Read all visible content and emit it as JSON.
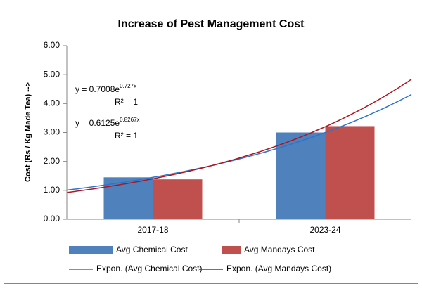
{
  "chart_data": {
    "type": "bar",
    "title": "Increase of Pest Management Cost",
    "y_label": "Cost (Rs / Kg Made Tea) -->",
    "categories": [
      "2017-18",
      "2023-24"
    ],
    "series": [
      {
        "name": "Avg Chemical Cost",
        "color": "#4f81bd",
        "values": [
          1.45,
          3.0
        ]
      },
      {
        "name": "Avg Mandays Cost",
        "color": "#c0504d",
        "values": [
          1.38,
          3.22
        ]
      }
    ],
    "trendlines": [
      {
        "name": "Expon. (Avg Chemical Cost)",
        "color": "#2e75c9",
        "type": "exponential",
        "coefficient": 0.7008,
        "exponent": 0.727,
        "equation_base": "y = 0.7008e",
        "equation_power": "0.727x",
        "r2_label": "R² = 1"
      },
      {
        "name": "Expon. (Avg Mandays Cost)",
        "color": "#b0151f",
        "type": "exponential",
        "coefficient": 0.6125,
        "exponent": 0.8267,
        "equation_base": "y = 0.6125e",
        "equation_power": "0.8267x",
        "r2_label": "R² = 1"
      }
    ],
    "ylim": [
      0,
      6
    ],
    "yticks": [
      {
        "value": 0,
        "label": "0.00"
      },
      {
        "value": 1,
        "label": "1.00"
      },
      {
        "value": 2,
        "label": "2.00"
      },
      {
        "value": 3,
        "label": "3.00"
      },
      {
        "value": 4,
        "label": "4.00"
      },
      {
        "value": 5,
        "label": "5.00"
      },
      {
        "value": 6,
        "label": "6.00"
      }
    ],
    "grid": false,
    "legend": "bottom"
  }
}
